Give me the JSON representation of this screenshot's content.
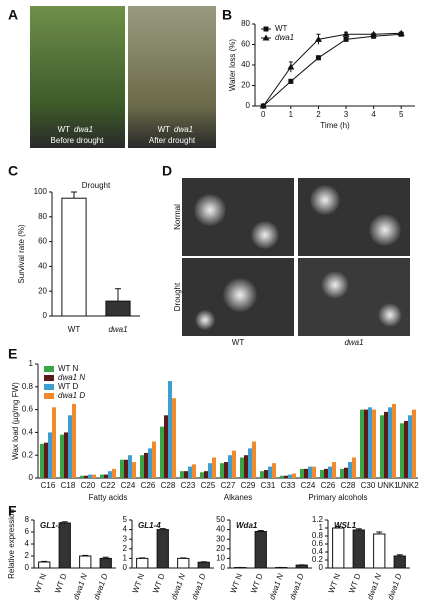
{
  "panels": {
    "labels": [
      "A",
      "B",
      "C",
      "D",
      "E",
      "F"
    ]
  },
  "panel_a": {
    "photos": [
      {
        "labels": [
          "WT",
          "dwa1"
        ],
        "caption": "Before drought"
      },
      {
        "labels": [
          "WT",
          "dwa1"
        ],
        "caption": "After drought"
      }
    ]
  },
  "panel_d": {
    "rows": [
      "Normal",
      "Drought"
    ],
    "columns": [
      "WT",
      "dwa1"
    ]
  },
  "chart_data": [
    {
      "type": "line",
      "xlabel": "Time (h)",
      "ylabel": "Water loss (%)",
      "legend": "upper left",
      "x": [
        0,
        1,
        2,
        3,
        4,
        5
      ],
      "xlim": [
        -0.3,
        5.5
      ],
      "xticks": [
        0,
        1,
        2,
        3,
        4,
        5
      ],
      "ylim": [
        0,
        80
      ],
      "yticks": [
        0,
        20,
        40,
        60,
        80
      ],
      "series": [
        {
          "name": "WT",
          "color": "#111111",
          "marker": "square",
          "values": [
            0,
            24,
            47,
            65,
            68,
            70
          ],
          "errors": [
            0,
            2,
            2,
            2,
            1,
            1
          ]
        },
        {
          "name": "dwa1",
          "color": "#111111",
          "marker": "triangle",
          "values": [
            0,
            38,
            65,
            70,
            70,
            71
          ],
          "errors": [
            0,
            5,
            5,
            2,
            1,
            1
          ]
        }
      ]
    },
    {
      "type": "bar",
      "title": "Drought",
      "ylabel": "Survival rate (%)",
      "categories": [
        "WT",
        "dwa1"
      ],
      "values": [
        95,
        12
      ],
      "errors": [
        5,
        10
      ],
      "colors": [
        "#ffffff",
        "#333333"
      ],
      "ylim": [
        0,
        100
      ],
      "yticks": [
        0,
        20,
        40,
        60,
        80,
        100
      ]
    },
    {
      "type": "grouped_bar",
      "ylabel": "Wax load (µg/mg FW)",
      "legend": "upper left",
      "ylim": [
        0,
        1
      ],
      "yticks": [
        0,
        0.2,
        0.4,
        0.6,
        0.8,
        1
      ],
      "groups": [
        {
          "name": "Fatty acids",
          "categories": [
            "C16",
            "C18",
            "C20",
            "C22",
            "C24",
            "C26",
            "C28"
          ]
        },
        {
          "name": "Alkanes",
          "categories": [
            "C23",
            "C25",
            "C27",
            "C29",
            "C31",
            "C33"
          ]
        },
        {
          "name": "Primary alcohols",
          "categories": [
            "C24",
            "C26",
            "C28",
            "C30"
          ]
        },
        {
          "name": null,
          "categories": [
            "UNK1",
            "UNK2"
          ]
        }
      ],
      "series": [
        {
          "name": "WT N",
          "color": "#3aa544",
          "values": [
            0.3,
            0.38,
            0.02,
            0.03,
            0.16,
            0.2,
            0.45,
            0.06,
            0.05,
            0.13,
            0.18,
            0.06,
            0.02,
            0.08,
            0.07,
            0.08,
            0.6,
            0.55,
            0.48
          ]
        },
        {
          "name": "dwa1 N",
          "color": "#5a1a1a",
          "values": [
            0.31,
            0.4,
            0.02,
            0.03,
            0.16,
            0.22,
            0.55,
            0.06,
            0.06,
            0.14,
            0.2,
            0.07,
            0.02,
            0.08,
            0.08,
            0.09,
            0.6,
            0.58,
            0.5
          ]
        },
        {
          "name": "WT D",
          "color": "#3c9fd0",
          "values": [
            0.4,
            0.55,
            0.03,
            0.06,
            0.2,
            0.26,
            0.85,
            0.1,
            0.13,
            0.2,
            0.26,
            0.1,
            0.03,
            0.1,
            0.1,
            0.14,
            0.62,
            0.62,
            0.55
          ]
        },
        {
          "name": "dwa1 D",
          "color": "#f08a2c",
          "values": [
            0.62,
            0.65,
            0.03,
            0.08,
            0.14,
            0.32,
            0.7,
            0.12,
            0.18,
            0.24,
            0.32,
            0.13,
            0.04,
            0.1,
            0.14,
            0.18,
            0.6,
            0.65,
            0.6
          ]
        }
      ]
    },
    {
      "type": "bar",
      "title": "GL1-2",
      "ylabel": "Relative expression",
      "categories": [
        "WT N",
        "WT D",
        "dwa1 N",
        "dwa1 D"
      ],
      "values": [
        1,
        7.5,
        2,
        1.6
      ],
      "errors": [
        0.1,
        0.2,
        0.1,
        0.2
      ],
      "colors": [
        "#ffffff",
        "#333333",
        "#ffffff",
        "#333333"
      ],
      "ylim": [
        0,
        8
      ],
      "yticks": [
        0,
        2,
        4,
        6,
        8
      ]
    },
    {
      "type": "bar",
      "title": "GL1-4",
      "categories": [
        "WT N",
        "WT D",
        "dwa1 N",
        "dwa1 D"
      ],
      "values": [
        1,
        4,
        1,
        0.6
      ],
      "errors": [
        0.05,
        0.1,
        0.05,
        0.05
      ],
      "colors": [
        "#ffffff",
        "#333333",
        "#ffffff",
        "#333333"
      ],
      "ylim": [
        0,
        5
      ],
      "yticks": [
        0,
        1,
        2,
        3,
        4,
        5
      ]
    },
    {
      "type": "bar",
      "title": "Wda1",
      "categories": [
        "WT N",
        "WT D",
        "dwa1 N",
        "dwa1 D"
      ],
      "values": [
        0.5,
        38,
        0.5,
        3
      ],
      "errors": [
        0.1,
        1,
        0.1,
        0.3
      ],
      "colors": [
        "#ffffff",
        "#333333",
        "#ffffff",
        "#333333"
      ],
      "ylim": [
        0,
        50
      ],
      "yticks": [
        0,
        10,
        20,
        30,
        40,
        50
      ]
    },
    {
      "type": "bar",
      "title": "WSL1",
      "categories": [
        "WT N",
        "WT D",
        "dwa1 N",
        "dwa1 D"
      ],
      "values": [
        1,
        0.95,
        0.85,
        0.3
      ],
      "errors": [
        0.04,
        0.03,
        0.05,
        0.03
      ],
      "colors": [
        "#ffffff",
        "#333333",
        "#ffffff",
        "#333333"
      ],
      "ylim": [
        0,
        1.2
      ],
      "yticks": [
        0,
        0.2,
        0.4,
        0.6,
        0.8,
        1,
        1.2
      ]
    }
  ]
}
